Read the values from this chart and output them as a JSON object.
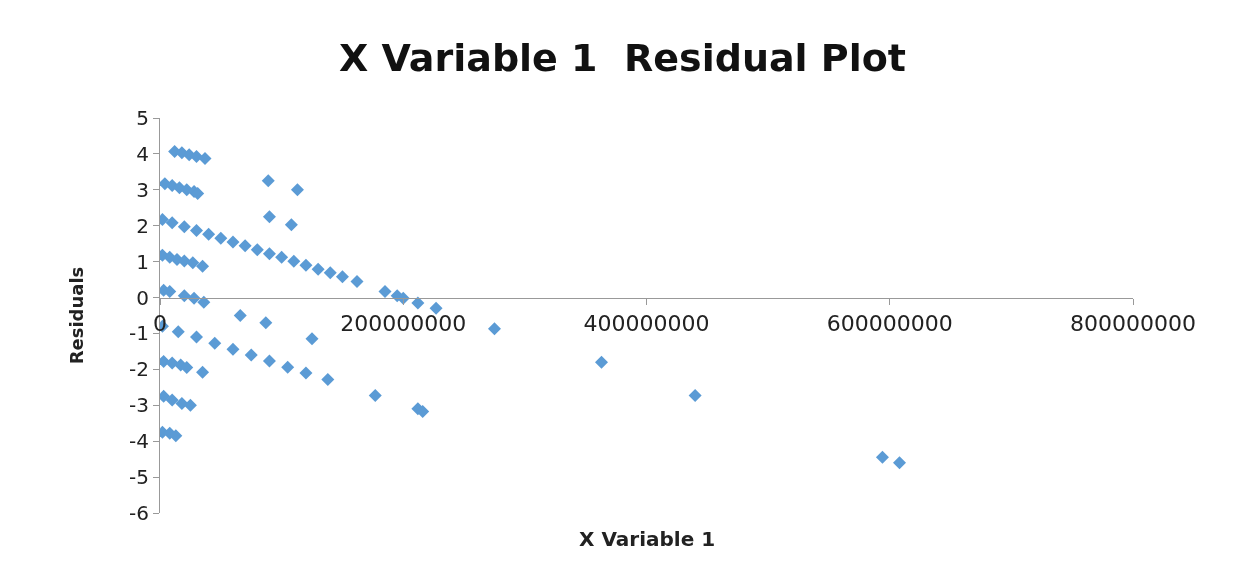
{
  "chart_data": {
    "type": "scatter",
    "title": "X Variable 1  Residual Plot",
    "xlabel": "X Variable 1",
    "ylabel": "Residuals",
    "xlim": [
      0,
      800000000
    ],
    "xticks": [
      0,
      200000000,
      400000000,
      600000000,
      800000000
    ],
    "ylim": [
      -6,
      5
    ],
    "yticks": [
      -6,
      -5,
      -4,
      -3,
      -2,
      -1,
      0,
      1,
      2,
      3,
      4,
      5
    ],
    "marker": "diamond",
    "series": [
      {
        "color": "#5b9bd5",
        "x": [
          12000000,
          18000000,
          24000000,
          30000000,
          37000000,
          4000000,
          10000000,
          16000000,
          22000000,
          28000000,
          31000000,
          89000000,
          113000000,
          90000000,
          108000000,
          2000000,
          10000000,
          20000000,
          30000000,
          40000000,
          50000000,
          60000000,
          70000000,
          80000000,
          90000000,
          100000000,
          110000000,
          120000000,
          130000000,
          140000000,
          150000000,
          162000000,
          185000000,
          195000000,
          200000000,
          212000000,
          227000000,
          2000000,
          8000000,
          14000000,
          20000000,
          27000000,
          35000000,
          3000000,
          8000000,
          20000000,
          28000000,
          36000000,
          66000000,
          87000000,
          2000000,
          15000000,
          30000000,
          45000000,
          60000000,
          75000000,
          90000000,
          105000000,
          120000000,
          138000000,
          125000000,
          275000000,
          3000000,
          10000000,
          17000000,
          22000000,
          35000000,
          3000000,
          10000000,
          18000000,
          25000000,
          2000000,
          8000000,
          13000000,
          177000000,
          212000000,
          216000000,
          363000000,
          440000000,
          594000000,
          608000000
        ],
        "values": [
          4.07,
          4.03,
          3.98,
          3.93,
          3.87,
          3.17,
          3.12,
          3.06,
          3.0,
          2.95,
          2.9,
          3.25,
          3.0,
          2.25,
          2.03,
          2.17,
          2.08,
          1.97,
          1.87,
          1.76,
          1.65,
          1.55,
          1.44,
          1.33,
          1.22,
          1.12,
          1.01,
          0.9,
          0.79,
          0.69,
          0.58,
          0.45,
          0.17,
          0.05,
          -0.02,
          -0.15,
          -0.3,
          1.18,
          1.12,
          1.06,
          1.02,
          0.97,
          0.87,
          0.2,
          0.17,
          0.05,
          -0.02,
          -0.13,
          -0.5,
          -0.7,
          -0.8,
          -0.95,
          -1.1,
          -1.27,
          -1.44,
          -1.6,
          -1.77,
          -1.94,
          -2.1,
          -2.28,
          -1.15,
          -0.87,
          -1.78,
          -1.82,
          -1.88,
          -1.95,
          -2.08,
          -2.75,
          -2.85,
          -2.95,
          -3.0,
          -3.75,
          -3.78,
          -3.85,
          -2.73,
          -3.1,
          -3.17,
          -1.8,
          -2.73,
          -4.45,
          -4.6
        ]
      }
    ]
  }
}
